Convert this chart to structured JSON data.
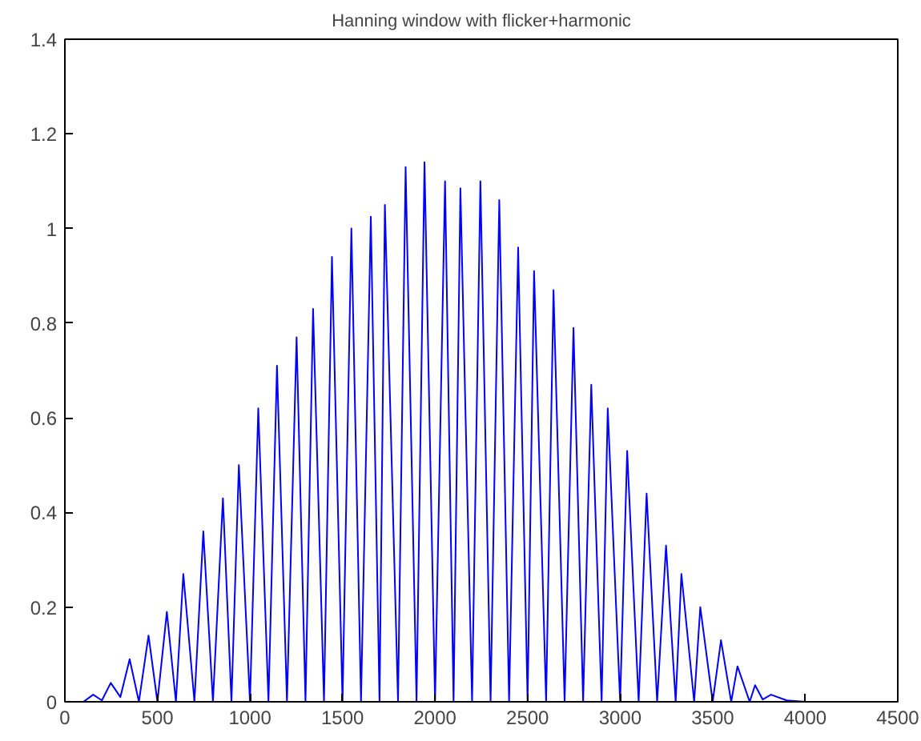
{
  "chart_data": {
    "type": "line",
    "title": "Hanning window with flicker+harmonic",
    "x": [
      0,
      100,
      153,
      200,
      248,
      300,
      350,
      400,
      452,
      500,
      551,
      600,
      640,
      700,
      748,
      800,
      854,
      900,
      940,
      1000,
      1045,
      1100,
      1146,
      1200,
      1252,
      1300,
      1341,
      1400,
      1443,
      1500,
      1548,
      1600,
      1653,
      1700,
      1729,
      1800,
      1841,
      1900,
      1943,
      2000,
      2054,
      2100,
      2137,
      2200,
      2245,
      2300,
      2347,
      2400,
      2449,
      2500,
      2535,
      2600,
      2640,
      2700,
      2748,
      2800,
      2844,
      2900,
      2933,
      3000,
      3038,
      3100,
      3143,
      3200,
      3248,
      3300,
      3331,
      3400,
      3433,
      3500,
      3545,
      3600,
      3634,
      3700,
      3729,
      3770,
      3815,
      3900,
      4000
    ],
    "series": [
      {
        "color": "#0000ff",
        "values": [
          0,
          0,
          0.015,
          0.003,
          0.04,
          0.01,
          0.09,
          0,
          0.14,
          0,
          0.19,
          0,
          0.27,
          0,
          0.36,
          0,
          0.43,
          0,
          0.5,
          0,
          0.62,
          0,
          0.71,
          0,
          0.77,
          0,
          0.83,
          0,
          0.94,
          0,
          1.0,
          0,
          1.025,
          0,
          1.05,
          0,
          1.13,
          0,
          1.14,
          0,
          1.1,
          0,
          1.085,
          0,
          1.1,
          0,
          1.06,
          0,
          0.96,
          0,
          0.91,
          0,
          0.87,
          0,
          0.79,
          0,
          0.67,
          0,
          0.62,
          0,
          0.53,
          0,
          0.44,
          0,
          0.33,
          0,
          0.27,
          0,
          0.2,
          0,
          0.13,
          0,
          0.075,
          0,
          0.035,
          0.005,
          0.015,
          0.003,
          0
        ]
      }
    ],
    "xlim": [
      0,
      4500
    ],
    "ylim": [
      0,
      1.4
    ],
    "xticks": [
      0,
      500,
      1000,
      1500,
      2000,
      2500,
      3000,
      3500,
      4000,
      4500
    ],
    "yticks": [
      0,
      0.2,
      0.4,
      0.6,
      0.8,
      1,
      1.2,
      1.4
    ],
    "grid": false,
    "line_style": "solid"
  }
}
